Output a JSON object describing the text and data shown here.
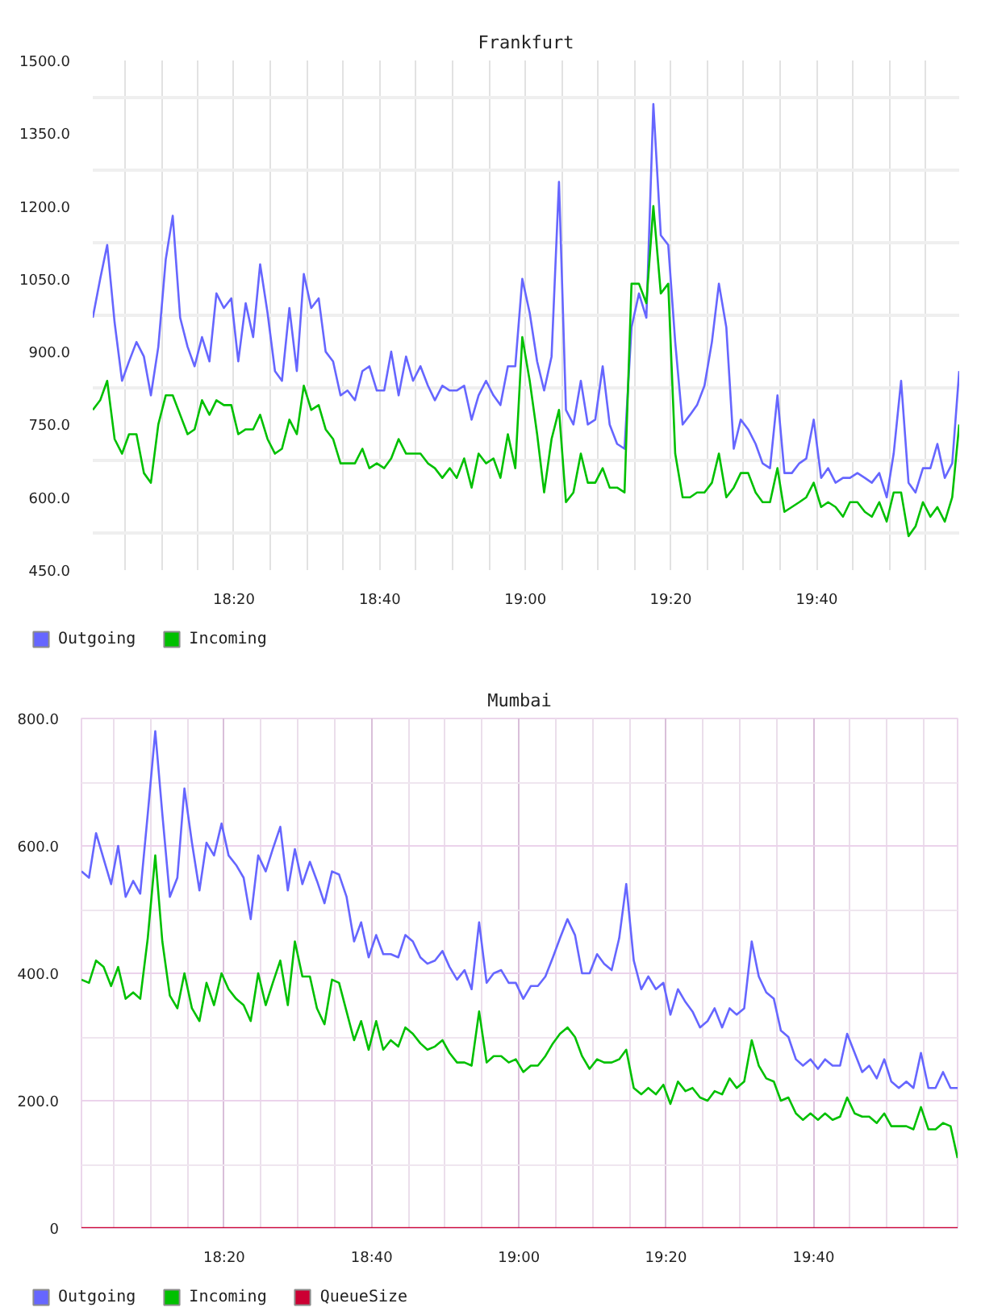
{
  "chart_data": [
    {
      "type": "line",
      "title": "Frankfurt",
      "x": [
        18.01,
        18.027,
        18.043,
        18.06,
        18.077,
        18.093,
        18.11,
        18.127,
        18.143,
        18.16,
        18.177,
        18.193,
        18.21,
        18.227,
        18.243,
        18.26,
        18.277,
        18.293,
        18.31,
        18.327,
        18.343,
        18.36,
        18.377,
        18.393,
        18.41,
        18.427,
        18.443,
        18.46,
        18.477,
        18.493,
        18.51,
        18.527,
        18.543,
        18.56,
        18.577,
        18.593,
        18.61,
        18.627,
        18.643,
        18.66,
        18.677,
        18.693,
        18.71,
        18.727,
        18.743,
        18.76,
        18.777,
        18.793,
        18.81,
        18.827,
        18.843,
        18.86,
        18.877,
        18.893,
        18.91,
        18.927,
        18.943,
        18.96,
        18.977,
        18.993,
        19.01,
        19.027,
        19.043,
        19.06,
        19.077,
        19.093,
        19.11,
        19.127,
        19.143,
        19.16,
        19.177,
        19.193,
        19.21,
        19.227,
        19.243,
        19.26,
        19.277,
        19.293,
        19.31,
        19.327,
        19.343,
        19.36,
        19.377,
        19.393,
        19.41,
        19.427,
        19.443,
        19.46,
        19.477,
        19.493,
        19.51,
        19.527,
        19.543,
        19.56,
        19.577,
        19.593,
        19.61,
        19.627,
        19.643,
        19.66,
        19.677,
        19.693,
        19.71,
        19.727,
        19.743,
        19.76,
        19.777,
        19.793,
        19.81,
        19.827,
        19.843,
        19.86,
        19.877,
        19.893,
        19.91,
        19.927,
        19.943,
        19.96,
        19.977,
        19.993
      ],
      "xlim": [
        18.01,
        19.993
      ],
      "xticks": [
        {
          "value": 18.083,
          "label": null
        },
        {
          "value": 18.167,
          "label": null
        },
        {
          "value": 18.25,
          "label": null
        },
        {
          "value": 18.333,
          "label": "18:20"
        },
        {
          "value": 18.417,
          "label": null
        },
        {
          "value": 18.5,
          "label": null
        },
        {
          "value": 18.583,
          "label": null
        },
        {
          "value": 18.667,
          "label": "18:40"
        },
        {
          "value": 18.75,
          "label": null
        },
        {
          "value": 18.833,
          "label": null
        },
        {
          "value": 18.917,
          "label": null
        },
        {
          "value": 19,
          "label": "19:00"
        },
        {
          "value": 19.083,
          "label": null
        },
        {
          "value": 19.167,
          "label": null
        },
        {
          "value": 19.25,
          "label": null
        },
        {
          "value": 19.333,
          "label": "19:20"
        },
        {
          "value": 19.417,
          "label": null
        },
        {
          "value": 19.5,
          "label": null
        },
        {
          "value": 19.583,
          "label": null
        },
        {
          "value": 19.667,
          "label": "19:40"
        },
        {
          "value": 19.75,
          "label": null
        },
        {
          "value": 19.833,
          "label": null
        },
        {
          "value": 19.917,
          "label": null
        }
      ],
      "ylim": [
        450,
        1500
      ],
      "yticks": [
        {
          "value": 450,
          "label": "450.0"
        },
        {
          "value": 525,
          "label": null
        },
        {
          "value": 600,
          "label": "600.0"
        },
        {
          "value": 675,
          "label": null
        },
        {
          "value": 750,
          "label": "750.0"
        },
        {
          "value": 825,
          "label": null
        },
        {
          "value": 900,
          "label": "900.0"
        },
        {
          "value": 975,
          "label": null
        },
        {
          "value": 1050,
          "label": "1050.0"
        },
        {
          "value": 1125,
          "label": null
        },
        {
          "value": 1200,
          "label": "1200.0"
        },
        {
          "value": 1275,
          "label": null
        },
        {
          "value": 1350,
          "label": "1350.0"
        },
        {
          "value": 1425,
          "label": null
        },
        {
          "value": 1500,
          "label": "1500.0"
        }
      ],
      "grid": true,
      "legend": "bottom left",
      "series": [
        {
          "name": "Outgoing",
          "color": "#6666ff",
          "values": [
            970,
            1050,
            1120,
            960,
            840,
            880,
            920,
            890,
            810,
            910,
            1090,
            1180,
            970,
            910,
            870,
            930,
            880,
            1020,
            990,
            1010,
            880,
            1000,
            930,
            1080,
            980,
            860,
            840,
            990,
            860,
            1060,
            990,
            1010,
            900,
            880,
            810,
            820,
            800,
            860,
            870,
            820,
            820,
            900,
            810,
            890,
            840,
            870,
            830,
            800,
            830,
            820,
            820,
            830,
            760,
            810,
            840,
            810,
            790,
            870,
            870,
            1050,
            980,
            880,
            820,
            890,
            1250,
            780,
            750,
            840,
            750,
            760,
            870,
            750,
            710,
            700,
            950,
            1020,
            970,
            1410,
            1140,
            1120,
            920,
            750,
            770,
            790,
            830,
            920,
            1040,
            950,
            700,
            760,
            740,
            710,
            670,
            660,
            810,
            650,
            650,
            670,
            680,
            760,
            640,
            660,
            630,
            640,
            640,
            650,
            640,
            630,
            650,
            600,
            690,
            840,
            630,
            610,
            660,
            660,
            710,
            640,
            670,
            860
          ]
        },
        {
          "name": "Incoming",
          "color": "#00c000",
          "values": [
            780,
            800,
            840,
            720,
            690,
            730,
            730,
            650,
            630,
            750,
            810,
            810,
            770,
            730,
            740,
            800,
            770,
            800,
            790,
            790,
            730,
            740,
            740,
            770,
            720,
            690,
            700,
            760,
            730,
            830,
            780,
            790,
            740,
            720,
            670,
            670,
            670,
            700,
            660,
            670,
            660,
            680,
            720,
            690,
            690,
            690,
            670,
            660,
            640,
            660,
            640,
            680,
            620,
            690,
            670,
            680,
            640,
            730,
            660,
            930,
            840,
            730,
            610,
            720,
            780,
            590,
            610,
            690,
            630,
            630,
            660,
            620,
            620,
            610,
            1040,
            1040,
            1000,
            1200,
            1020,
            1040,
            690,
            600,
            600,
            610,
            610,
            630,
            690,
            600,
            620,
            650,
            650,
            610,
            590,
            590,
            660,
            570,
            580,
            590,
            600,
            630,
            580,
            590,
            580,
            560,
            590,
            590,
            570,
            560,
            590,
            550,
            610,
            610,
            520,
            540,
            590,
            560,
            580,
            550,
            600,
            750
          ]
        }
      ]
    },
    {
      "type": "line",
      "title": "Mumbai",
      "x": [
        18.01,
        18.027,
        18.043,
        18.06,
        18.077,
        18.093,
        18.11,
        18.127,
        18.143,
        18.16,
        18.177,
        18.193,
        18.21,
        18.227,
        18.243,
        18.26,
        18.277,
        18.293,
        18.31,
        18.327,
        18.343,
        18.36,
        18.377,
        18.393,
        18.41,
        18.427,
        18.443,
        18.46,
        18.477,
        18.493,
        18.51,
        18.527,
        18.543,
        18.56,
        18.577,
        18.593,
        18.61,
        18.627,
        18.643,
        18.66,
        18.677,
        18.693,
        18.71,
        18.727,
        18.743,
        18.76,
        18.777,
        18.793,
        18.81,
        18.827,
        18.843,
        18.86,
        18.877,
        18.893,
        18.91,
        18.927,
        18.943,
        18.96,
        18.977,
        18.993,
        19.01,
        19.027,
        19.043,
        19.06,
        19.077,
        19.093,
        19.11,
        19.127,
        19.143,
        19.16,
        19.177,
        19.193,
        19.21,
        19.227,
        19.243,
        19.26,
        19.277,
        19.293,
        19.31,
        19.327,
        19.343,
        19.36,
        19.377,
        19.393,
        19.41,
        19.427,
        19.443,
        19.46,
        19.477,
        19.493,
        19.51,
        19.527,
        19.543,
        19.56,
        19.577,
        19.593,
        19.61,
        19.627,
        19.643,
        19.66,
        19.677,
        19.693,
        19.71,
        19.727,
        19.743,
        19.76,
        19.777,
        19.793,
        19.81,
        19.827,
        19.843,
        19.86,
        19.877,
        19.893,
        19.91,
        19.927,
        19.943,
        19.96,
        19.977,
        19.993
      ],
      "xlim": [
        18.01,
        19.993
      ],
      "xticks": [
        {
          "value": 18.083,
          "label": null
        },
        {
          "value": 18.167,
          "label": null
        },
        {
          "value": 18.25,
          "label": null
        },
        {
          "value": 18.333,
          "label": "18:20"
        },
        {
          "value": 18.417,
          "label": null
        },
        {
          "value": 18.5,
          "label": null
        },
        {
          "value": 18.583,
          "label": null
        },
        {
          "value": 18.667,
          "label": "18:40"
        },
        {
          "value": 18.75,
          "label": null
        },
        {
          "value": 18.833,
          "label": null
        },
        {
          "value": 18.917,
          "label": null
        },
        {
          "value": 19,
          "label": "19:00"
        },
        {
          "value": 19.083,
          "label": null
        },
        {
          "value": 19.167,
          "label": null
        },
        {
          "value": 19.25,
          "label": null
        },
        {
          "value": 19.333,
          "label": "19:20"
        },
        {
          "value": 19.417,
          "label": null
        },
        {
          "value": 19.5,
          "label": null
        },
        {
          "value": 19.583,
          "label": null
        },
        {
          "value": 19.667,
          "label": "19:40"
        },
        {
          "value": 19.75,
          "label": null
        },
        {
          "value": 19.833,
          "label": null
        },
        {
          "value": 19.917,
          "label": null
        }
      ],
      "ylim": [
        0,
        800
      ],
      "yticks": [
        0,
        {
          "value": 100,
          "label": null
        },
        {
          "value": 200,
          "label": "200.0"
        },
        {
          "value": 300,
          "label": null
        },
        {
          "value": 400,
          "label": "400.0"
        },
        {
          "value": 500,
          "label": null
        },
        {
          "value": 600,
          "label": "600.0"
        },
        {
          "value": 700,
          "label": null
        },
        {
          "value": 800,
          "label": "800.0"
        }
      ],
      "grid": true,
      "legend": "bottom left",
      "series": [
        {
          "name": "Outgoing",
          "color": "#6666ff",
          "values": [
            560,
            550,
            620,
            580,
            540,
            600,
            520,
            545,
            525,
            650,
            780,
            650,
            520,
            550,
            690,
            605,
            530,
            605,
            585,
            635,
            585,
            570,
            550,
            485,
            585,
            560,
            595,
            630,
            530,
            595,
            540,
            575,
            545,
            510,
            560,
            555,
            520,
            450,
            480,
            425,
            460,
            430,
            430,
            425,
            460,
            450,
            425,
            415,
            420,
            435,
            410,
            390,
            405,
            375,
            480,
            385,
            400,
            405,
            385,
            385,
            360,
            380,
            380,
            395,
            425,
            455,
            485,
            460,
            400,
            400,
            430,
            415,
            405,
            455,
            540,
            420,
            375,
            395,
            375,
            385,
            335,
            375,
            355,
            340,
            315,
            325,
            345,
            315,
            345,
            335,
            345,
            450,
            395,
            370,
            360,
            310,
            300,
            265,
            255,
            265,
            250,
            265,
            255,
            255,
            305,
            275,
            245,
            255,
            235,
            265,
            230,
            220,
            230,
            220,
            275,
            220,
            220,
            245,
            220,
            220
          ]
        },
        {
          "name": "Incoming",
          "color": "#00c000",
          "values": [
            390,
            385,
            420,
            410,
            380,
            410,
            360,
            370,
            360,
            455,
            585,
            450,
            365,
            345,
            400,
            345,
            325,
            385,
            350,
            400,
            375,
            360,
            350,
            325,
            400,
            350,
            385,
            420,
            350,
            450,
            395,
            395,
            345,
            320,
            390,
            385,
            340,
            295,
            325,
            280,
            325,
            280,
            295,
            285,
            315,
            305,
            290,
            280,
            285,
            295,
            275,
            260,
            260,
            255,
            340,
            260,
            270,
            270,
            260,
            265,
            245,
            255,
            255,
            270,
            290,
            305,
            315,
            300,
            270,
            250,
            265,
            260,
            260,
            265,
            280,
            220,
            210,
            220,
            210,
            225,
            195,
            230,
            215,
            220,
            205,
            200,
            215,
            210,
            235,
            220,
            230,
            295,
            255,
            235,
            230,
            200,
            205,
            180,
            170,
            180,
            170,
            180,
            170,
            175,
            205,
            180,
            175,
            175,
            165,
            180,
            160,
            160,
            160,
            155,
            190,
            155,
            155,
            165,
            160,
            110
          ]
        },
        {
          "name": "QueueSize",
          "color": "#cc0033",
          "x": [
            18.01,
            19.993
          ],
          "values": [
            0,
            0
          ]
        }
      ]
    }
  ]
}
